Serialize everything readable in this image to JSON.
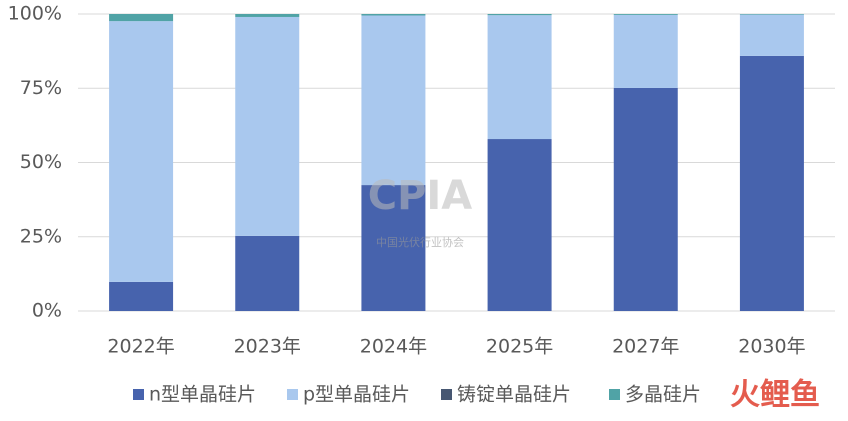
{
  "chart_data": {
    "type": "stacked_bar",
    "categories": [
      "2022年",
      "2023年",
      "2024年",
      "2025年",
      "2027年",
      "2030年"
    ],
    "series": [
      {
        "name": "n型单晶硅片",
        "color": "#4763ad",
        "values": [
          9.8,
          25.3,
          42.4,
          57.9,
          75.1,
          85.9
        ]
      },
      {
        "name": "p型单晶硅片",
        "color": "#a9c8ee",
        "values": [
          87.8,
          73.7,
          57.1,
          41.7,
          24.6,
          13.9
        ]
      },
      {
        "name": "铸锭单晶硅片",
        "color": "#475772",
        "values": [
          0,
          0,
          0,
          0,
          0,
          0
        ]
      },
      {
        "name": "多晶硅片",
        "color": "#50a3a6",
        "values": [
          2.4,
          1.0,
          0.5,
          0.4,
          0.3,
          0.2
        ]
      }
    ],
    "ylim": [
      0,
      100
    ],
    "yticks": [
      {
        "value": 0,
        "label": "0%"
      },
      {
        "value": 25,
        "label": "25%"
      },
      {
        "value": 50,
        "label": "50%"
      },
      {
        "value": 75,
        "label": "75%"
      },
      {
        "value": 100,
        "label": "100%"
      }
    ],
    "grid": true,
    "legend": "bottom",
    "watermarks": [
      "CPIA",
      "中国光伏行业协会",
      "火鲤鱼"
    ]
  }
}
